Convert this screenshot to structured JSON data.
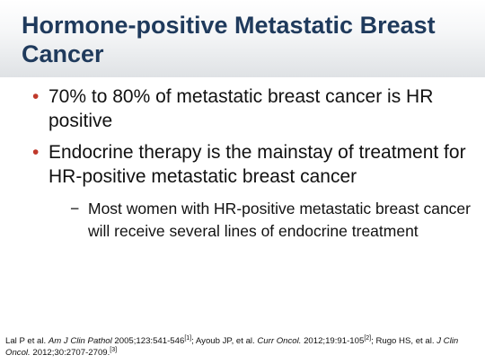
{
  "slide": {
    "title": "Hormone-positive Metastatic Breast Cancer",
    "bullet_marker": "•",
    "sub_bullet_marker": "−",
    "bullets": [
      {
        "text": "70% to 80% of metastatic breast cancer is HR positive"
      },
      {
        "text": "Endocrine therapy is the mainstay of treatment for HR-positive metastatic breast cancer"
      }
    ],
    "sub_bullets": [
      {
        "text": "Most women with HR-positive metastatic breast cancer will receive several lines of endocrine treatment"
      }
    ],
    "references": [
      {
        "authors": "Lal P et al. ",
        "journal": "Am J Clin Pathol",
        "citation": " 2005;123:541-546",
        "mark": "[1]",
        "sep": "; "
      },
      {
        "authors": "Ayoub JP, et al. ",
        "journal": "Curr Oncol.",
        "citation": " 2012;19:91-105",
        "mark": "[2]",
        "sep": "; "
      },
      {
        "authors": "Rugo HS, et al. ",
        "journal": "J Clin Oncol.",
        "citation": " 2012;30:2707-2709.",
        "mark": "[3]",
        "sep": ""
      }
    ]
  }
}
